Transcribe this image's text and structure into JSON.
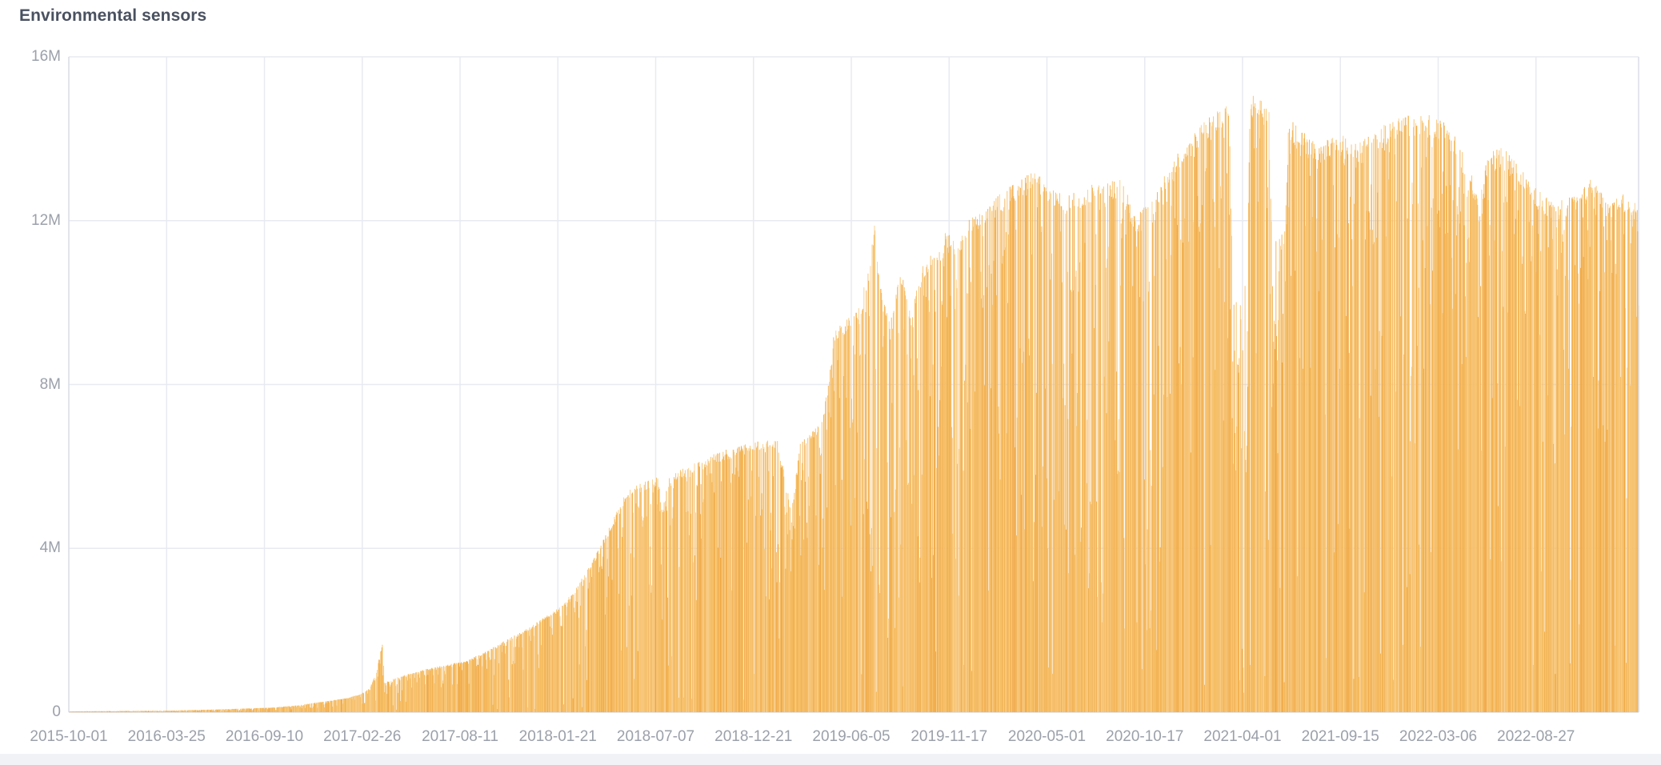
{
  "panel": {
    "title": "Environmental sensors"
  },
  "colors": {
    "bar": "#f5bb5e",
    "bar_light": "#f8ca82",
    "bar_mid": "#f6bc60",
    "bar_dark": "#f0a945",
    "grid": "#e8eaf2",
    "axis_line": "#dcdee8",
    "tick_text": "#9ba0aa",
    "title_text": "#4a5160",
    "page_strip": "#f1f2f6",
    "background": "#ffffff"
  },
  "chart_data": {
    "type": "bar",
    "title": "Environmental sensors",
    "xlabel": "",
    "ylabel": "",
    "ylim": [
      0,
      16000000
    ],
    "grid": true,
    "legend": "none",
    "y_tick_labels": [
      "0",
      "4M",
      "8M",
      "12M",
      "16M"
    ],
    "y_tick_values_millions": [
      0,
      4,
      8,
      12,
      16
    ],
    "x_tick_labels": [
      "2015-10-01",
      "2016-03-25",
      "2016-09-10",
      "2017-02-26",
      "2017-08-11",
      "2018-01-21",
      "2018-07-07",
      "2018-12-21",
      "2019-06-05",
      "2019-11-17",
      "2020-05-01",
      "2020-10-17",
      "2021-04-01",
      "2021-09-15",
      "2022-03-06",
      "2022-08-27"
    ],
    "x_start": "2015-10-01",
    "x_end": "2023-02-07",
    "series_name": "Environmental sensors",
    "envelope_millions": [
      [
        "2015-10-01",
        0.02
      ],
      [
        "2016-01-01",
        0.03
      ],
      [
        "2016-03-25",
        0.04
      ],
      [
        "2016-06-15",
        0.07
      ],
      [
        "2016-09-10",
        0.11
      ],
      [
        "2016-10-20",
        0.16
      ],
      [
        "2016-11-20",
        0.22
      ],
      [
        "2016-12-20",
        0.28
      ],
      [
        "2017-01-20",
        0.35
      ],
      [
        "2017-02-12",
        0.45
      ],
      [
        "2017-02-26",
        0.58
      ],
      [
        "2017-03-10",
        1.0
      ],
      [
        "2017-03-21",
        1.78
      ],
      [
        "2017-03-23",
        0.72
      ],
      [
        "2017-04-20",
        0.88
      ],
      [
        "2017-06-01",
        1.05
      ],
      [
        "2017-08-11",
        1.26
      ],
      [
        "2017-09-15",
        1.5
      ],
      [
        "2017-10-15",
        1.75
      ],
      [
        "2017-11-15",
        1.98
      ],
      [
        "2017-12-15",
        2.25
      ],
      [
        "2018-01-21",
        2.6
      ],
      [
        "2018-02-15",
        3.05
      ],
      [
        "2018-03-15",
        3.7
      ],
      [
        "2018-04-15",
        4.6
      ],
      [
        "2018-05-12",
        5.4
      ],
      [
        "2018-06-06",
        5.6
      ],
      [
        "2018-07-05",
        5.75
      ],
      [
        "2018-07-12",
        5.0
      ],
      [
        "2018-07-25",
        5.8
      ],
      [
        "2018-09-01",
        6.05
      ],
      [
        "2018-10-15",
        6.35
      ],
      [
        "2018-12-21",
        6.65
      ],
      [
        "2019-01-25",
        6.7
      ],
      [
        "2019-02-18",
        4.9
      ],
      [
        "2019-03-05",
        6.6
      ],
      [
        "2019-04-05",
        7.0
      ],
      [
        "2019-04-20",
        7.8
      ],
      [
        "2019-05-03",
        9.4
      ],
      [
        "2019-05-25",
        9.6
      ],
      [
        "2019-06-15",
        9.9
      ],
      [
        "2019-07-01",
        11.0
      ],
      [
        "2019-07-10",
        12.05
      ],
      [
        "2019-07-20",
        10.4
      ],
      [
        "2019-08-03",
        9.6
      ],
      [
        "2019-08-25",
        10.85
      ],
      [
        "2019-09-10",
        9.7
      ],
      [
        "2019-09-30",
        10.9
      ],
      [
        "2019-10-25",
        11.4
      ],
      [
        "2019-11-10",
        11.75
      ],
      [
        "2019-11-25",
        11.5
      ],
      [
        "2019-12-20",
        12.1
      ],
      [
        "2020-01-20",
        12.4
      ],
      [
        "2020-02-20",
        12.8
      ],
      [
        "2020-04-05",
        13.2
      ],
      [
        "2020-05-01",
        13.0
      ],
      [
        "2020-06-01",
        12.6
      ],
      [
        "2020-07-01",
        12.85
      ],
      [
        "2020-08-10",
        12.95
      ],
      [
        "2020-09-06",
        13.0
      ],
      [
        "2020-09-28",
        12.1
      ],
      [
        "2020-10-17",
        12.45
      ],
      [
        "2020-11-01",
        12.7
      ],
      [
        "2020-11-27",
        13.35
      ],
      [
        "2020-12-24",
        14.0
      ],
      [
        "2021-01-20",
        14.35
      ],
      [
        "2021-02-17",
        14.75
      ],
      [
        "2021-03-08",
        14.85
      ],
      [
        "2021-03-13",
        10.9
      ],
      [
        "2021-03-26",
        9.9
      ],
      [
        "2021-04-08",
        10.9
      ],
      [
        "2021-04-12",
        14.7
      ],
      [
        "2021-04-20",
        15.3
      ],
      [
        "2021-05-03",
        14.9
      ],
      [
        "2021-05-15",
        14.7
      ],
      [
        "2021-05-19",
        12.0
      ],
      [
        "2021-06-01",
        11.6
      ],
      [
        "2021-06-10",
        11.9
      ],
      [
        "2021-06-18",
        14.5
      ],
      [
        "2021-07-10",
        14.2
      ],
      [
        "2021-08-05",
        13.9
      ],
      [
        "2021-09-15",
        14.1
      ],
      [
        "2021-10-15",
        13.9
      ],
      [
        "2021-11-15",
        14.25
      ],
      [
        "2021-12-20",
        14.5
      ],
      [
        "2022-02-01",
        14.65
      ],
      [
        "2022-03-06",
        14.5
      ],
      [
        "2022-04-01",
        14.0
      ],
      [
        "2022-04-25",
        13.3
      ],
      [
        "2022-05-10",
        12.4
      ],
      [
        "2022-05-25",
        13.75
      ],
      [
        "2022-06-20",
        13.8
      ],
      [
        "2022-07-15",
        13.4
      ],
      [
        "2022-08-05",
        12.95
      ],
      [
        "2022-08-27",
        12.65
      ],
      [
        "2022-09-20",
        12.5
      ],
      [
        "2022-10-20",
        12.65
      ],
      [
        "2022-11-20",
        13.1
      ],
      [
        "2022-12-15",
        12.55
      ],
      [
        "2023-01-10",
        12.7
      ],
      [
        "2023-02-07",
        12.35
      ]
    ],
    "daily_variation": {
      "seed": 1337,
      "levels": [
        {
          "p": 0.6,
          "dip": [
            0.0,
            0.04
          ]
        },
        {
          "p": 0.22,
          "dip": [
            0.04,
            0.2
          ]
        },
        {
          "p": 0.11,
          "dip": [
            0.2,
            0.5
          ]
        },
        {
          "p": 0.055,
          "dip": [
            0.5,
            0.9
          ]
        },
        {
          "p": 0.015,
          "dip": [
            0.9,
            0.97
          ]
        }
      ],
      "high_variability_windows": [
        {
          "from": "2019-06-20",
          "to": "2019-12-10",
          "rate": 0.15,
          "dip_min": 0.3,
          "dip_max": 0.8
        },
        {
          "from": "2020-03-01",
          "to": "2020-12-20",
          "rate": 0.18,
          "dip_min": 0.3,
          "dip_max": 0.85
        },
        {
          "from": "2021-03-13",
          "to": "2021-04-10",
          "rate": 0.5,
          "dip_min": 0.1,
          "dip_max": 0.5
        },
        {
          "from": "2021-05-19",
          "to": "2021-06-10",
          "rate": 0.4,
          "dip_min": 0.1,
          "dip_max": 0.4
        }
      ]
    }
  }
}
